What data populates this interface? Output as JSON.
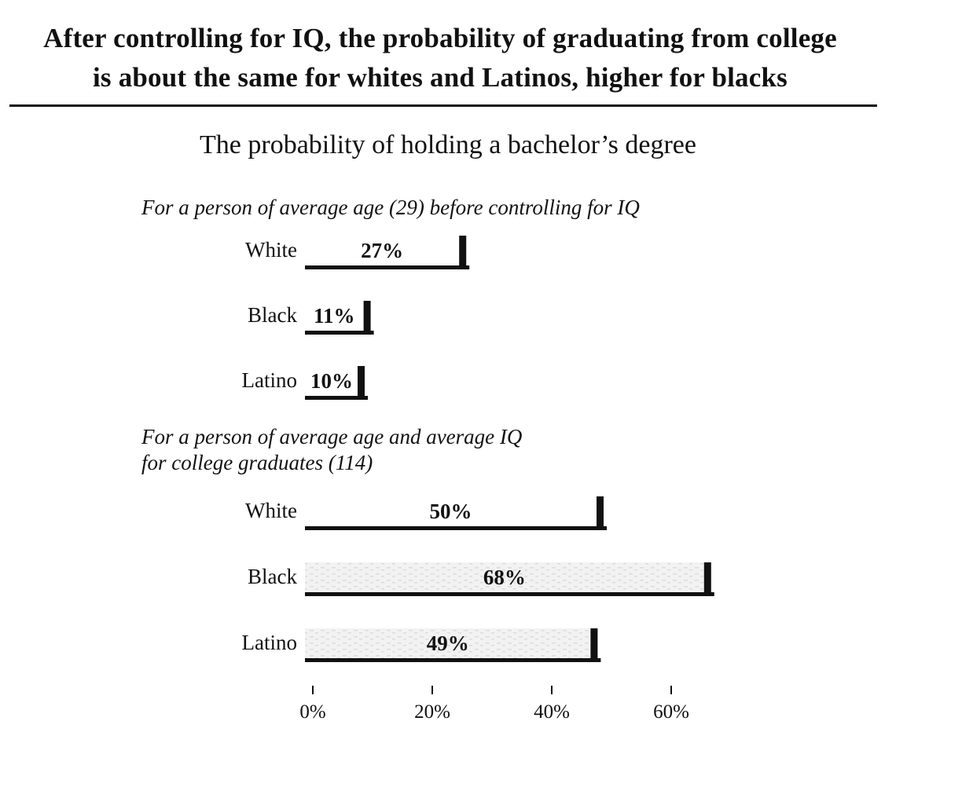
{
  "header": {
    "title_line1": "After controlling for IQ, the probability of graduating from college",
    "title_line2": "is about the same for whites and Latinos, higher for blacks"
  },
  "chart_data": {
    "type": "bar",
    "title": "The probability of holding a bachelor’s degree",
    "xlim": [
      0,
      60
    ],
    "ticks": [
      0,
      20,
      40,
      60
    ],
    "tick_labels": [
      "0%",
      "20%",
      "40%",
      "60%"
    ],
    "grid": false,
    "panels": [
      {
        "title_lines": [
          "For a person of average age (29) before controlling for IQ"
        ],
        "categories": [
          "White",
          "Black",
          "Latino"
        ],
        "values": [
          27,
          11,
          10
        ],
        "value_labels": [
          "27%",
          "11%",
          "10%"
        ]
      },
      {
        "title_lines": [
          "For a person of average age and average IQ",
          "for college graduates (114)"
        ],
        "categories": [
          "White",
          "Black",
          "Latino"
        ],
        "values": [
          50,
          68,
          49
        ],
        "value_labels": [
          "50%",
          "68%",
          "49%"
        ]
      }
    ]
  },
  "colors": {
    "ink": "#111111",
    "bar_face": "#ffffff",
    "bar_texture": "#dcdcdc"
  }
}
